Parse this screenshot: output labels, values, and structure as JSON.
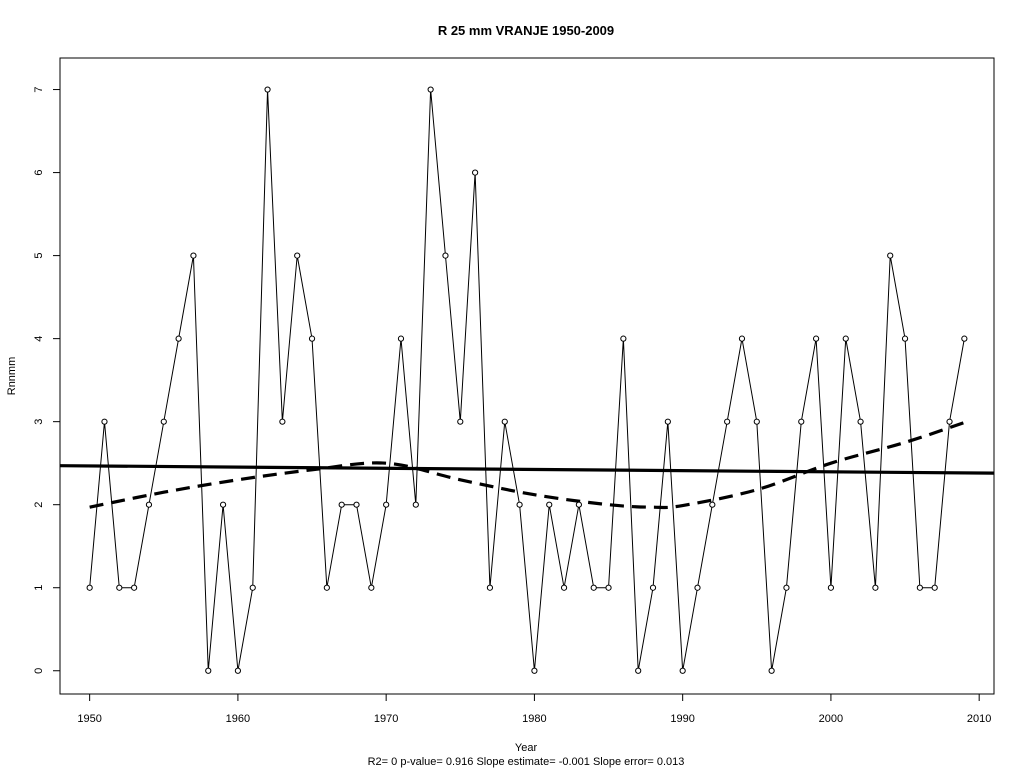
{
  "chart_data": {
    "type": "line",
    "title": "R   25   mm   VRANJE 1950-2009",
    "xlabel": "Year",
    "ylabel": "Rnnmm",
    "footer": "R2= 0  p-value= 0.916  Slope estimate= -0.001  Slope error= 0.013",
    "xlim": [
      1948,
      2011
    ],
    "ylim": [
      -0.28,
      7.38
    ],
    "x_ticks": [
      1950,
      1960,
      1970,
      1980,
      1990,
      2000,
      2010
    ],
    "y_ticks": [
      0,
      1,
      2,
      3,
      4,
      5,
      6,
      7
    ],
    "grid": false,
    "legend": "none",
    "series": [
      {
        "style": "line-with-open-circles",
        "color": "#000000",
        "x": [
          1950,
          1951,
          1952,
          1953,
          1954,
          1955,
          1956,
          1957,
          1958,
          1959,
          1960,
          1961,
          1962,
          1963,
          1964,
          1965,
          1966,
          1967,
          1968,
          1969,
          1970,
          1971,
          1972,
          1973,
          1974,
          1975,
          1976,
          1977,
          1978,
          1979,
          1980,
          1981,
          1982,
          1983,
          1984,
          1985,
          1986,
          1987,
          1988,
          1989,
          1990,
          1991,
          1992,
          1993,
          1994,
          1995,
          1996,
          1997,
          1998,
          1999,
          2000,
          2001,
          2002,
          2003,
          2004,
          2005,
          2006,
          2007,
          2008,
          2009
        ],
        "y": [
          1,
          3,
          1,
          1,
          2,
          3,
          4,
          5,
          0,
          2,
          0,
          1,
          7,
          3,
          5,
          4,
          1,
          2,
          2,
          1,
          2,
          4,
          2,
          7,
          5,
          3,
          6,
          1,
          3,
          2,
          0,
          2,
          1,
          2,
          1,
          1,
          4,
          0,
          1,
          3,
          0,
          1,
          2,
          3,
          4,
          3,
          0,
          1,
          3,
          4,
          1,
          4,
          3,
          1,
          5,
          4,
          1,
          1,
          3,
          4
        ]
      },
      {
        "style": "thick-solid-linear-trend",
        "color": "#000000",
        "x": [
          1948,
          2011
        ],
        "y": [
          2.47,
          2.38
        ]
      },
      {
        "style": "thick-dashed-smooth",
        "color": "#000000",
        "x": [
          1950,
          1955,
          1960,
          1965,
          1970,
          1975,
          1980,
          1985,
          1988,
          1990,
          1995,
          2000,
          2005,
          2009
        ],
        "y": [
          1.97,
          2.15,
          2.3,
          2.42,
          2.5,
          2.3,
          2.12,
          2.0,
          1.97,
          1.99,
          2.18,
          2.5,
          2.75,
          2.99
        ]
      }
    ]
  }
}
